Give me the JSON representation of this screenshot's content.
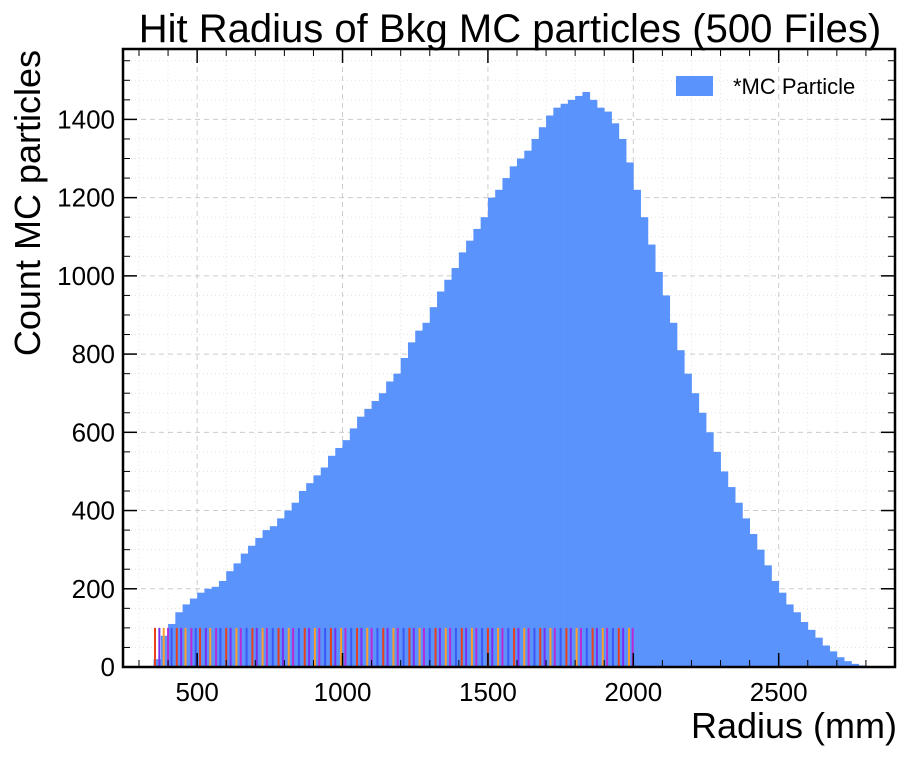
{
  "chart_data": {
    "type": "bar",
    "title": "Hit Radius of Bkg MC particles (500 Files)",
    "xlabel": "Radius (mm)",
    "ylabel": "Count MC particles",
    "xlim": [
      245,
      2900
    ],
    "ylim": [
      0,
      1580
    ],
    "x_ticks": [
      500,
      1000,
      1500,
      2000,
      2500
    ],
    "y_ticks": [
      0,
      200,
      400,
      600,
      800,
      1000,
      1200,
      1400
    ],
    "x_tick_labels": [
      "500",
      "1000",
      "1500",
      "2000",
      "2500"
    ],
    "y_tick_labels": [
      "0",
      "200",
      "400",
      "600",
      "800",
      "1000",
      "1200",
      "1400"
    ],
    "grid": true,
    "legend_position": "top-right",
    "series": [
      {
        "name": "*MC Particle",
        "color": "#5a93fb",
        "bin_width": 25,
        "bins_start": [
          350,
          375,
          400,
          425,
          450,
          475,
          500,
          525,
          550,
          575,
          600,
          625,
          650,
          675,
          700,
          725,
          750,
          775,
          800,
          825,
          850,
          875,
          900,
          925,
          950,
          975,
          1000,
          1025,
          1050,
          1075,
          1100,
          1125,
          1150,
          1175,
          1200,
          1225,
          1250,
          1275,
          1300,
          1325,
          1350,
          1375,
          1400,
          1425,
          1450,
          1475,
          1500,
          1525,
          1550,
          1575,
          1600,
          1625,
          1650,
          1675,
          1700,
          1725,
          1750,
          1775,
          1800,
          1825,
          1850,
          1875,
          1900,
          1925,
          1950,
          1975,
          2000,
          2025,
          2050,
          2075,
          2100,
          2125,
          2150,
          2175,
          2200,
          2225,
          2250,
          2275,
          2300,
          2325,
          2350,
          2375,
          2400,
          2425,
          2450,
          2475,
          2500,
          2525,
          2550,
          2575,
          2600,
          2625,
          2650,
          2675,
          2700,
          2725,
          2750,
          2775
        ],
        "values": [
          20,
          80,
          110,
          140,
          160,
          175,
          190,
          200,
          205,
          220,
          245,
          265,
          290,
          310,
          330,
          350,
          360,
          380,
          400,
          420,
          450,
          470,
          490,
          510,
          540,
          560,
          580,
          610,
          640,
          660,
          680,
          700,
          730,
          750,
          790,
          830,
          860,
          880,
          920,
          960,
          990,
          1020,
          1060,
          1090,
          1120,
          1150,
          1200,
          1220,
          1250,
          1280,
          1300,
          1320,
          1350,
          1380,
          1410,
          1430,
          1440,
          1450,
          1460,
          1470,
          1450,
          1430,
          1420,
          1390,
          1350,
          1290,
          1220,
          1150,
          1080,
          1010,
          950,
          880,
          810,
          750,
          700,
          650,
          600,
          550,
          500,
          460,
          420,
          380,
          340,
          300,
          260,
          220,
          190,
          160,
          140,
          115,
          95,
          75,
          55,
          40,
          25,
          15,
          8,
          4
        ]
      }
    ],
    "marker_lines": {
      "height": 100,
      "colors": [
        "#e8401c",
        "#7a2ff2",
        "#ff9c2a",
        "#b92bd6",
        "#3d57f5"
      ],
      "x": [
        355,
        370,
        385,
        400,
        412,
        430,
        445,
        460,
        480,
        495,
        510,
        530,
        545,
        565,
        580,
        600,
        615,
        635,
        650,
        670,
        690,
        705,
        725,
        740,
        760,
        780,
        795,
        815,
        830,
        850,
        870,
        885,
        905,
        920,
        940,
        960,
        975,
        995,
        1010,
        1030,
        1050,
        1065,
        1085,
        1100,
        1120,
        1140,
        1155,
        1175,
        1190,
        1210,
        1230,
        1245,
        1265,
        1280,
        1300,
        1320,
        1335,
        1355,
        1370,
        1390,
        1410,
        1425,
        1445,
        1460,
        1480,
        1500,
        1515,
        1535,
        1550,
        1570,
        1590,
        1605,
        1625,
        1640,
        1660,
        1680,
        1695,
        1715,
        1730,
        1750,
        1770,
        1785,
        1805,
        1820,
        1840,
        1860,
        1875,
        1895,
        1910,
        1930,
        1950,
        1965,
        1985,
        1998
      ]
    }
  }
}
